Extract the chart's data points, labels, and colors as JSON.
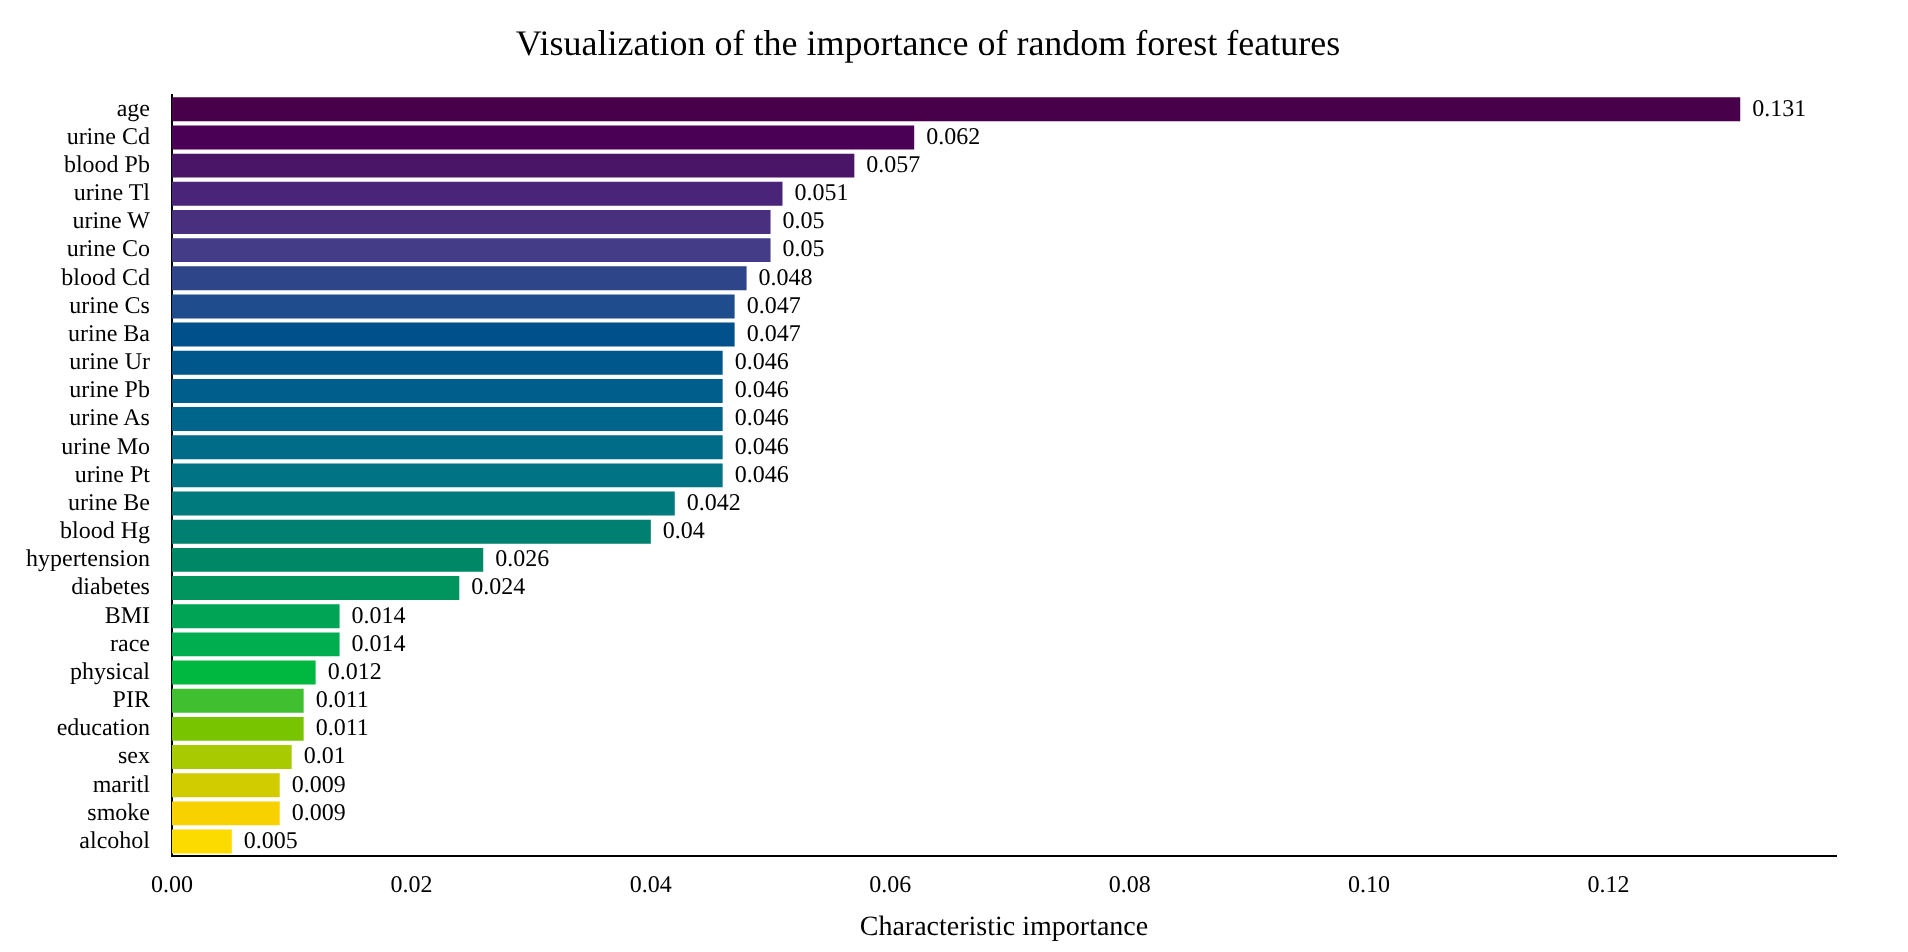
{
  "chart_data": {
    "type": "bar",
    "orientation": "horizontal",
    "title": "Visualization of the importance of random forest features",
    "xlabel": "Characteristic importance",
    "categories": [
      "age",
      "urine Cd",
      "blood Pb",
      "urine Tl",
      "urine W",
      "urine Co",
      "blood Cd",
      "urine Cs",
      "urine Ba",
      "urine Ur",
      "urine Pb",
      "urine As",
      "urine Mo",
      "urine Pt",
      "urine Be",
      "blood Hg",
      "hypertension",
      "diabetes",
      "BMI",
      "race",
      "physical",
      "PIR",
      "education",
      "sex",
      "maritl",
      "smoke",
      "alcohol"
    ],
    "values": [
      0.131,
      0.062,
      0.057,
      0.051,
      0.05,
      0.05,
      0.048,
      0.047,
      0.047,
      0.046,
      0.046,
      0.046,
      0.046,
      0.046,
      0.042,
      0.04,
      0.026,
      0.024,
      0.014,
      0.014,
      0.012,
      0.011,
      0.011,
      0.01,
      0.009,
      0.009,
      0.005
    ],
    "colors": [
      "#48004a",
      "#4a0055",
      "#4a1566",
      "#4a2478",
      "#48307f",
      "#443c87",
      "#2e4589",
      "#1e4c8c",
      "#00508c",
      "#00578c",
      "#005e8c",
      "#00658a",
      "#006c88",
      "#007484",
      "#007a7c",
      "#008070",
      "#008866",
      "#00955e",
      "#00a455",
      "#00ae50",
      "#00b840",
      "#40c030",
      "#78c400",
      "#a8ca00",
      "#d0cc00",
      "#f8d200",
      "#fcdc00"
    ],
    "xlim": [
      0,
      0.139
    ],
    "xticks": [
      {
        "value": 0,
        "label": "0.00"
      },
      {
        "value": 0.02,
        "label": "0.02"
      },
      {
        "value": 0.04,
        "label": "0.04"
      },
      {
        "value": 0.06,
        "label": "0.06"
      },
      {
        "value": 0.08,
        "label": "0.08"
      },
      {
        "value": 0.1,
        "label": "0.10"
      },
      {
        "value": 0.12,
        "label": "0.12"
      }
    ],
    "data_labels": true,
    "grid": false,
    "legend": false
  }
}
